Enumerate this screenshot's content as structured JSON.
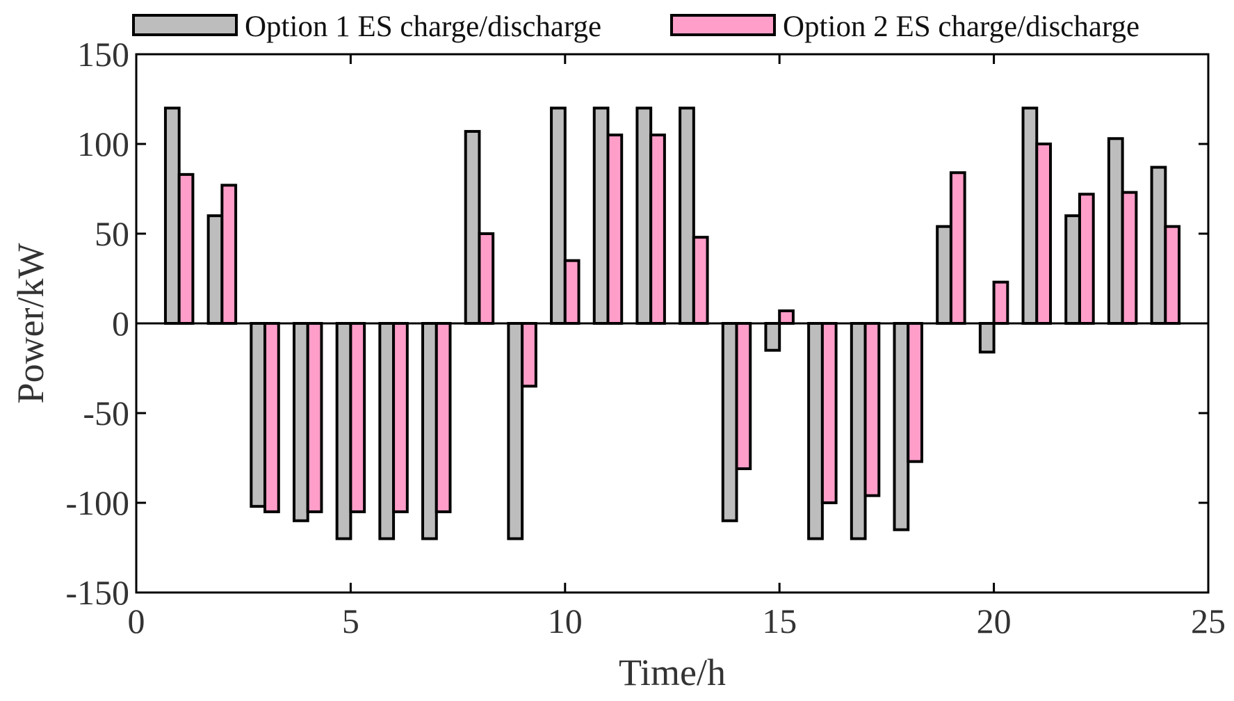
{
  "chart_data": {
    "type": "bar",
    "xlabel": "Time/h",
    "ylabel": "Power/kW",
    "xlim": [
      0,
      25
    ],
    "ylim": [
      -150,
      150
    ],
    "x_ticks": [
      0,
      5,
      10,
      15,
      20,
      25
    ],
    "y_ticks": [
      -150,
      -100,
      -50,
      0,
      50,
      100,
      150
    ],
    "grid": false,
    "legend_position": "top",
    "x": [
      1,
      2,
      3,
      4,
      5,
      6,
      7,
      8,
      9,
      10,
      11,
      12,
      13,
      14,
      15,
      16,
      17,
      18,
      19,
      20,
      21,
      22,
      23,
      24
    ],
    "series": [
      {
        "name": "Option 1 ES charge/discharge",
        "color": "#bdbdbd",
        "values": [
          120,
          60,
          -102,
          -110,
          -120,
          -120,
          -120,
          107,
          -120,
          120,
          120,
          120,
          120,
          -110,
          -15,
          -120,
          -120,
          -115,
          54,
          -16,
          120,
          60,
          103,
          87
        ]
      },
      {
        "name": "Option 2 ES charge/discharge",
        "color": "#ff9ec9",
        "values": [
          83,
          77,
          -105,
          -105,
          -105,
          -105,
          -105,
          50,
          -35,
          35,
          105,
          105,
          48,
          -81,
          7,
          -100,
          -96,
          -77,
          84,
          23,
          100,
          72,
          73,
          54
        ]
      }
    ]
  }
}
